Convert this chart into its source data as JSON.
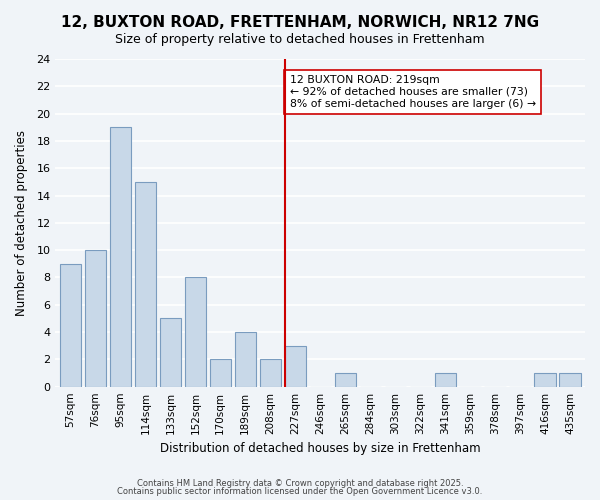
{
  "title": "12, BUXTON ROAD, FRETTENHAM, NORWICH, NR12 7NG",
  "subtitle": "Size of property relative to detached houses in Frettenham",
  "xlabel": "Distribution of detached houses by size in Frettenham",
  "ylabel": "Number of detached properties",
  "bar_labels": [
    "57sqm",
    "76sqm",
    "95sqm",
    "114sqm",
    "133sqm",
    "152sqm",
    "170sqm",
    "189sqm",
    "208sqm",
    "227sqm",
    "246sqm",
    "265sqm",
    "284sqm",
    "303sqm",
    "322sqm",
    "341sqm",
    "359sqm",
    "378sqm",
    "397sqm",
    "416sqm",
    "435sqm"
  ],
  "bar_values": [
    9,
    10,
    19,
    15,
    5,
    8,
    2,
    4,
    2,
    3,
    0,
    1,
    0,
    0,
    0,
    1,
    0,
    0,
    0,
    1,
    1
  ],
  "bar_color": "#c8d8e8",
  "bar_edge_color": "#7a9cbf",
  "background_color": "#f0f4f8",
  "grid_color": "#ffffff",
  "vline_x": 9,
  "vline_color": "#cc0000",
  "annotation_text": "12 BUXTON ROAD: 219sqm\n← 92% of detached houses are smaller (73)\n8% of semi-detached houses are larger (6) →",
  "annotation_box_color": "#ffffff",
  "annotation_box_edge": "#cc0000",
  "ylim": [
    0,
    24
  ],
  "yticks": [
    0,
    2,
    4,
    6,
    8,
    10,
    12,
    14,
    16,
    18,
    20,
    22,
    24
  ],
  "footer1": "Contains HM Land Registry data © Crown copyright and database right 2025.",
  "footer2": "Contains public sector information licensed under the Open Government Licence v3.0."
}
